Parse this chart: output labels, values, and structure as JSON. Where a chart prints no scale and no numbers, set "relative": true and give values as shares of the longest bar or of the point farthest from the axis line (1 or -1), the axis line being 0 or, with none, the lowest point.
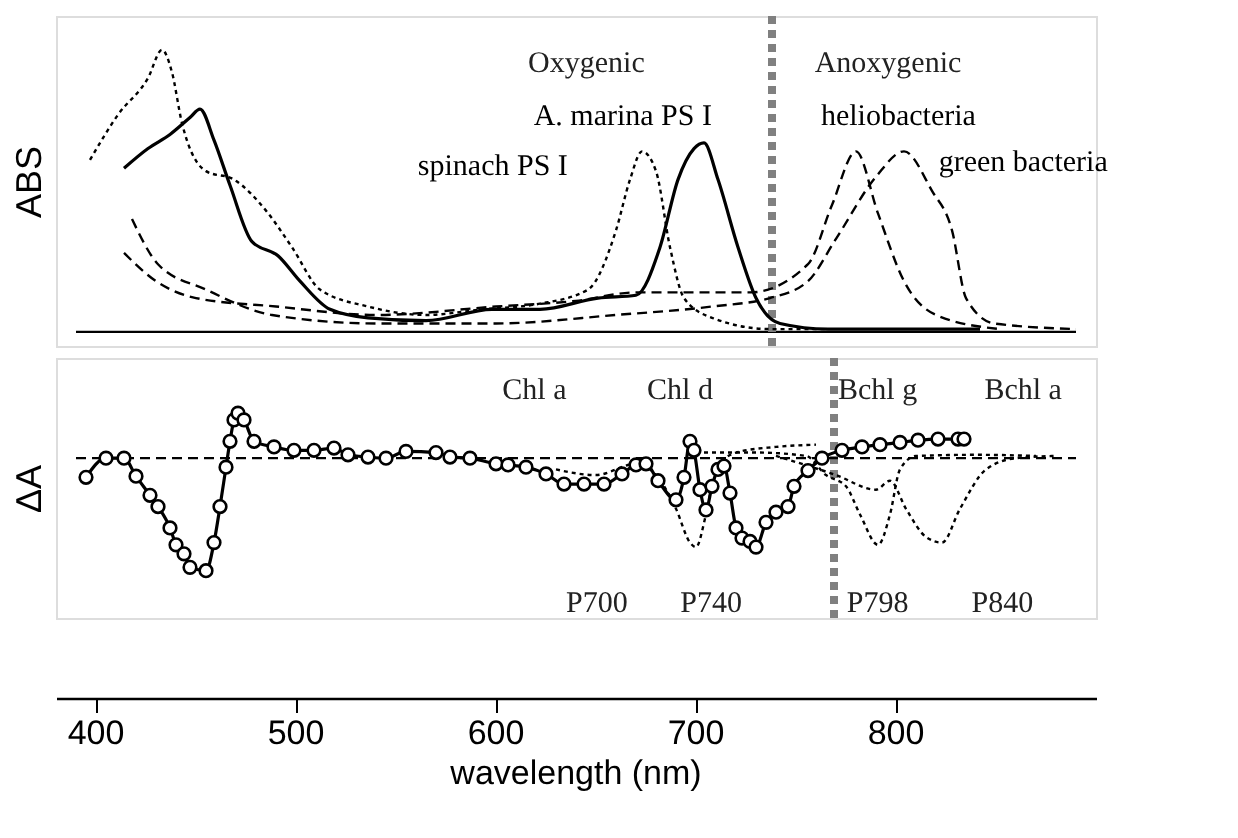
{
  "chart_data": [
    {
      "type": "line",
      "relative": true,
      "ylabel": "ABS",
      "xlim": [
        380,
        900
      ],
      "tick_labels": false,
      "series": [
        {
          "name": "spinach PS I",
          "color": "#000000",
          "line_style": "dotted",
          "x": [
            397,
            411,
            426,
            433,
            438,
            443,
            455,
            469,
            485,
            498,
            512,
            536,
            565,
            593,
            622,
            646,
            660,
            667,
            673,
            680,
            687,
            694,
            708,
            737,
            766
          ],
          "values": [
            0.61,
            0.77,
            0.9,
            1.0,
            0.92,
            0.74,
            0.57,
            0.54,
            0.43,
            0.3,
            0.15,
            0.09,
            0.06,
            0.08,
            0.1,
            0.15,
            0.36,
            0.54,
            0.64,
            0.57,
            0.3,
            0.12,
            0.05,
            0.01,
            0.01
          ]
        },
        {
          "name": "A. marina PS I",
          "color": "#000000",
          "line_style": "solid",
          "x": [
            414,
            426,
            437,
            447,
            452,
            459,
            467,
            478,
            491,
            502,
            517,
            536,
            565,
            598,
            622,
            651,
            670,
            682,
            691,
            699,
            704,
            711,
            721,
            730,
            742,
            766,
            804,
            842
          ],
          "values": [
            0.58,
            0.65,
            0.7,
            0.76,
            0.79,
            0.68,
            0.52,
            0.32,
            0.27,
            0.18,
            0.08,
            0.05,
            0.04,
            0.08,
            0.08,
            0.12,
            0.13,
            0.3,
            0.54,
            0.65,
            0.67,
            0.54,
            0.3,
            0.12,
            0.03,
            0.01,
            0.01,
            0.01
          ]
        },
        {
          "name": "heliobacteria",
          "color": "#000000",
          "line_style": "dashed",
          "x": [
            414,
            430,
            450,
            490,
            540,
            600,
            640,
            670,
            708,
            727,
            756,
            768,
            780,
            791,
            804,
            820,
            852
          ],
          "values": [
            0.28,
            0.18,
            0.12,
            0.09,
            0.06,
            0.09,
            0.11,
            0.14,
            0.14,
            0.14,
            0.24,
            0.45,
            0.64,
            0.42,
            0.18,
            0.06,
            0.01
          ]
        },
        {
          "name": "green bacteria",
          "color": "#000000",
          "line_style": "dashed",
          "x": [
            418,
            431,
            455,
            488,
            540,
            600,
            660,
            708,
            737,
            756,
            770,
            790,
            804,
            818,
            828,
            835,
            849,
            890
          ],
          "values": [
            0.4,
            0.24,
            0.15,
            0.06,
            0.03,
            0.03,
            0.06,
            0.09,
            0.12,
            0.18,
            0.33,
            0.55,
            0.64,
            0.5,
            0.36,
            0.12,
            0.03,
            0.01
          ]
        }
      ],
      "annotations": [
        "Oxygenic",
        "Anoxygenic"
      ],
      "ref_lines": [
        {
          "axis": "x",
          "value": 738,
          "color": "#808080",
          "line_style": "dotted"
        }
      ]
    },
    {
      "type": "line",
      "relative": true,
      "ylabel": "ΔA",
      "xlabel": "wavelength (nm)",
      "xlim": [
        380,
        900
      ],
      "tick_labels": "x",
      "xticks": [
        400,
        500,
        600,
        700,
        800
      ],
      "series": [
        {
          "color": "#000000",
          "line_style": "dotted",
          "x": [
            630,
            650,
            670,
            680,
            690,
            697,
            700,
            705,
            710,
            720,
            740,
            760
          ],
          "values": [
            -0.1,
            -0.15,
            -0.05,
            -0.15,
            -0.45,
            -0.75,
            -0.79,
            -0.5,
            -0.1,
            0.05,
            0.1,
            0.12
          ]
        },
        {
          "color": "#000000",
          "line_style": "dotted",
          "x": [
            700,
            730,
            755,
            765,
            775,
            782,
            791,
            797,
            802,
            810,
            840,
            870
          ],
          "values": [
            0.05,
            0.05,
            0.02,
            -0.15,
            -0.25,
            -0.5,
            -0.77,
            -0.5,
            -0.1,
            0.02,
            0.03,
            0.02
          ]
        },
        {
          "color": "#000000",
          "line_style": "dotted",
          "x": [
            740,
            770,
            790,
            797,
            805,
            815,
            823,
            832,
            845,
            860,
            880
          ],
          "values": [
            0.02,
            -0.15,
            -0.28,
            -0.2,
            -0.45,
            -0.7,
            -0.75,
            -0.45,
            -0.1,
            0.0,
            0.02
          ]
        },
        {
          "color": "#000000",
          "line_style": "solid",
          "marker": "circle",
          "x": [
            395,
            405,
            414,
            420,
            427,
            431,
            437,
            440,
            444,
            447,
            455,
            459,
            462,
            465,
            467,
            469,
            471,
            474,
            479,
            489,
            499,
            509,
            519,
            526,
            536,
            545,
            555,
            570,
            577,
            587,
            600,
            606,
            615,
            625,
            634,
            644,
            654,
            663,
            670,
            675,
            681,
            690,
            694,
            697,
            699,
            702,
            705,
            708,
            711,
            714,
            717,
            720,
            723,
            727,
            730,
            735,
            740,
            746,
            749,
            756,
            763,
            773,
            783,
            792,
            802,
            811,
            821,
            831,
            834
          ],
          "values": [
            -0.17,
            0.0,
            0.0,
            -0.16,
            -0.33,
            -0.43,
            -0.62,
            -0.77,
            -0.85,
            -0.97,
            -1.0,
            -0.75,
            -0.43,
            -0.08,
            0.15,
            0.34,
            0.4,
            0.34,
            0.15,
            0.1,
            0.07,
            0.07,
            0.09,
            0.03,
            0.01,
            0.0,
            0.06,
            0.05,
            0.01,
            0.0,
            -0.05,
            -0.06,
            -0.08,
            -0.14,
            -0.23,
            -0.23,
            -0.23,
            -0.14,
            -0.06,
            -0.05,
            -0.2,
            -0.37,
            -0.17,
            0.15,
            0.07,
            -0.28,
            -0.46,
            -0.25,
            -0.1,
            -0.07,
            -0.31,
            -0.62,
            -0.71,
            -0.74,
            -0.79,
            -0.57,
            -0.48,
            -0.43,
            -0.25,
            -0.11,
            0.0,
            0.07,
            0.1,
            0.12,
            0.14,
            0.16,
            0.17,
            0.17,
            0.17
          ]
        }
      ],
      "annotations": [
        "Chl a",
        "Chl d",
        "Bchl g",
        "Bchl a",
        "P700",
        "P740",
        "P798",
        "P840"
      ],
      "ref_lines": [
        {
          "axis": "x",
          "value": 769,
          "color": "#808080",
          "line_style": "dotted"
        },
        {
          "axis": "y",
          "value": 0,
          "color": "#000000",
          "line_style": "dashed"
        }
      ]
    }
  ]
}
